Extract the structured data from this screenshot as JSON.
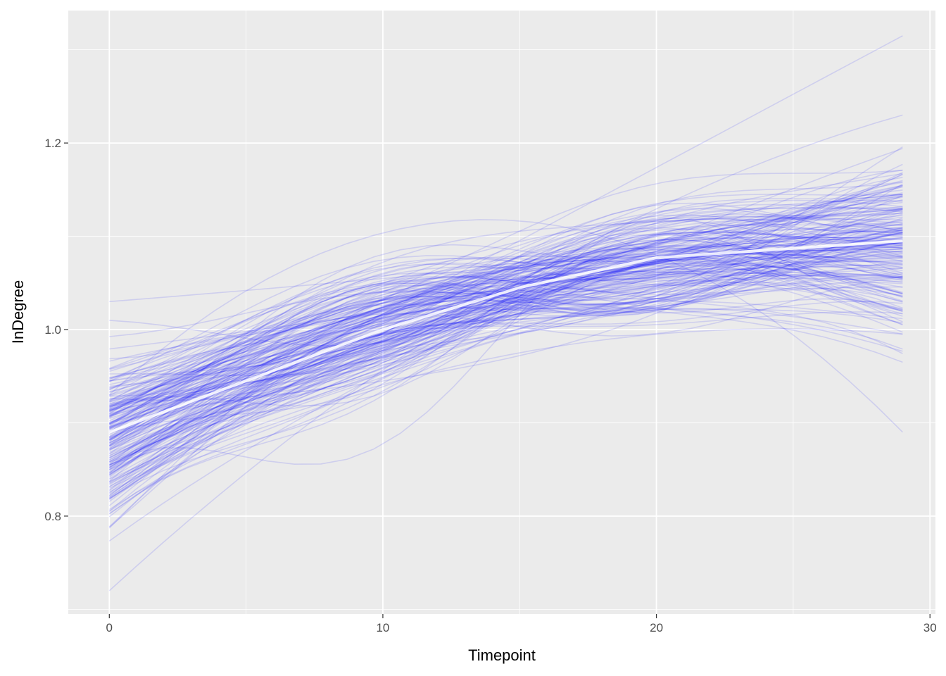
{
  "chart_data": {
    "type": "line",
    "title": "",
    "xlabel": "Timepoint",
    "ylabel": "InDegree",
    "xlim": [
      -1.5,
      30.2
    ],
    "ylim": [
      0.695,
      1.342
    ],
    "x_ticks": [
      0,
      10,
      20,
      30
    ],
    "x_tick_labels": [
      "0",
      "10",
      "20",
      "30"
    ],
    "y_ticks": [
      0.8,
      1.0,
      1.2
    ],
    "y_tick_labels": [
      "0.8",
      "1.0",
      "1.2"
    ],
    "grid": true,
    "legend": "none",
    "colors": {
      "panel": "#ebebeb",
      "grid": "#ffffff",
      "series": "#0000ff",
      "mean": "#ffffff"
    },
    "series_count": 200,
    "series_opacity": 0.12,
    "x_range": [
      0,
      29
    ],
    "mean_curve": {
      "x": [
        0,
        5,
        10,
        15,
        20,
        25,
        29
      ],
      "y": [
        0.89,
        0.945,
        1.0,
        1.045,
        1.077,
        1.087,
        1.095
      ]
    },
    "series_examples": [
      {
        "x": [
          0,
          29
        ],
        "y": [
          0.86,
          1.315
        ]
      },
      {
        "x": [
          0,
          12,
          29
        ],
        "y": [
          1.03,
          1.06,
          1.11
        ]
      },
      {
        "x": [
          0,
          18,
          29
        ],
        "y": [
          0.72,
          1.1,
          1.23
        ]
      },
      {
        "x": [
          0,
          20,
          29
        ],
        "y": [
          0.93,
          1.08,
          0.89
        ]
      },
      {
        "x": [
          0,
          20,
          29
        ],
        "y": [
          0.83,
          0.995,
          0.995
        ]
      }
    ]
  }
}
